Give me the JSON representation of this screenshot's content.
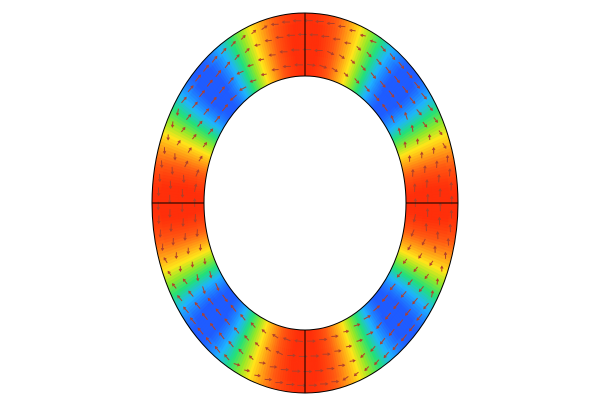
{
  "figure": {
    "kind": "annular-field-plot",
    "colormap": [
      "#1f5cff",
      "#1fb3ff",
      "#22e07a",
      "#8fe82a",
      "#ffe51a",
      "#ffa016",
      "#ff5a12",
      "#ff2f0a"
    ],
    "arrow_color": "#b0402a",
    "outline_color": "#000000",
    "field": {
      "mode_cycles": 4,
      "peak_value": 1.0,
      "low_value": 0.0
    }
  }
}
